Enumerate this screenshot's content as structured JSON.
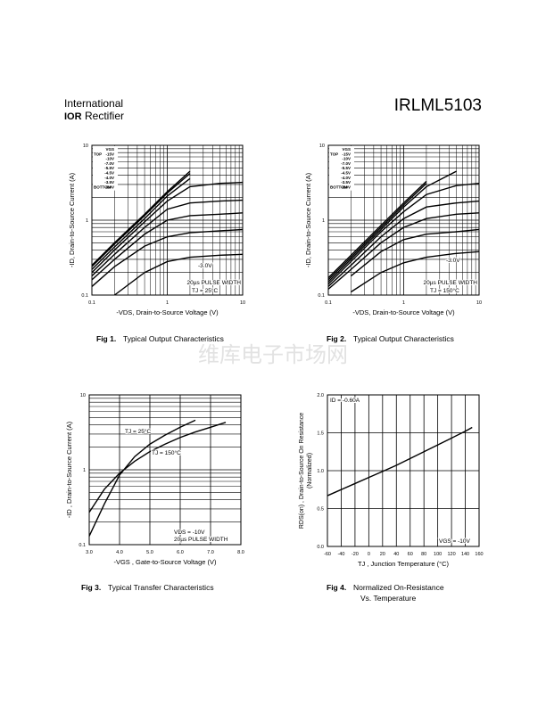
{
  "header": {
    "company_line1": "International",
    "company_logo": "IOR",
    "company_line2": "Rectifier",
    "part_number": "IRLML5103"
  },
  "watermark": "维库电子市场网",
  "chart_data": [
    {
      "type": "line",
      "x_log": true,
      "y_log": true,
      "grid": true,
      "xlim": [
        0.1,
        10
      ],
      "ylim": [
        0.1,
        10
      ],
      "xticks": [
        0.1,
        1,
        10
      ],
      "yticks": [
        0.1,
        1,
        10
      ],
      "x_label": "-VDS, Drain-to-Source Voltage (V)",
      "y_label": "-ID, Drain-to-Source Current (A)",
      "legend_title": "VGS",
      "legend_top": "TOP",
      "legend_bottom": "BOTTOM",
      "x": [
        0.1,
        0.2,
        0.5,
        1,
        2,
        5,
        10
      ],
      "series": [
        {
          "name": "-15V",
          "color": "#000000",
          "values": [
            0.25,
            0.5,
            1.2,
            2.4,
            4.5,
            null,
            null
          ]
        },
        {
          "name": "-10V",
          "color": "#000000",
          "values": [
            0.24,
            0.48,
            1.15,
            2.3,
            4.2,
            null,
            null
          ]
        },
        {
          "name": "-7.0V",
          "color": "#000000",
          "values": [
            0.22,
            0.44,
            1.05,
            2.1,
            3.6,
            null,
            null
          ]
        },
        {
          "name": "-5.5V",
          "color": "#000000",
          "values": [
            0.2,
            0.4,
            0.95,
            1.8,
            2.8,
            3.1,
            3.2
          ]
        },
        {
          "name": "-4.5V",
          "color": "#000000",
          "values": [
            0.18,
            0.35,
            0.8,
            1.4,
            1.7,
            1.8,
            1.85
          ]
        },
        {
          "name": "-4.0V",
          "color": "#000000",
          "values": [
            0.16,
            0.3,
            0.65,
            1.0,
            1.15,
            1.2,
            1.25
          ]
        },
        {
          "name": "-3.5V",
          "color": "#000000",
          "values": [
            0.13,
            0.24,
            0.45,
            0.6,
            0.68,
            0.72,
            0.75
          ]
        },
        {
          "name": "-3.0V",
          "color": "#000000",
          "values": [
            null,
            0.1,
            0.2,
            0.28,
            0.32,
            0.34,
            0.35
          ]
        }
      ],
      "annotations": [
        "-3.0V",
        "20µs PULSE WIDTH",
        "TJ = 25°C"
      ]
    },
    {
      "type": "line",
      "x_log": true,
      "y_log": true,
      "grid": true,
      "xlim": [
        0.1,
        10
      ],
      "ylim": [
        0.1,
        10
      ],
      "xticks": [
        0.1,
        1,
        10
      ],
      "yticks": [
        0.1,
        1,
        10
      ],
      "x_label": "-VDS, Drain-to-Source Voltage (V)",
      "y_label": "-ID, Drain-to-Source Current (A)",
      "legend_title": "VGS",
      "legend_top": "TOP",
      "legend_bottom": "BOTTOM",
      "x": [
        0.1,
        0.2,
        0.5,
        1,
        2,
        5,
        10
      ],
      "series": [
        {
          "name": "-15V",
          "color": "#000000",
          "values": [
            0.17,
            0.34,
            0.85,
            1.7,
            3.3,
            null,
            null
          ]
        },
        {
          "name": "-10V",
          "color": "#000000",
          "values": [
            0.16,
            0.32,
            0.8,
            1.6,
            3.1,
            null,
            null
          ]
        },
        {
          "name": "-7.0V",
          "color": "#000000",
          "values": [
            0.15,
            0.3,
            0.75,
            1.5,
            2.8,
            4.5,
            null
          ]
        },
        {
          "name": "-5.5V",
          "color": "#000000",
          "values": [
            0.14,
            0.28,
            0.7,
            1.3,
            2.2,
            2.9,
            3.1
          ]
        },
        {
          "name": "-4.5V",
          "color": "#000000",
          "values": [
            0.13,
            0.25,
            0.6,
            1.05,
            1.5,
            1.7,
            1.8
          ]
        },
        {
          "name": "-4.0V",
          "color": "#000000",
          "values": [
            0.12,
            0.22,
            0.5,
            0.8,
            1.05,
            1.2,
            1.25
          ]
        },
        {
          "name": "-3.5V",
          "color": "#000000",
          "values": [
            null,
            0.18,
            0.38,
            0.55,
            0.65,
            0.7,
            0.75
          ]
        },
        {
          "name": "-3.0V",
          "color": "#000000",
          "values": [
            null,
            0.11,
            0.2,
            0.27,
            0.32,
            0.36,
            0.38
          ]
        }
      ],
      "annotations": [
        "-3.0V",
        "20µs PULSE WIDTH",
        "TJ = 150°C"
      ]
    },
    {
      "type": "line",
      "x_log": false,
      "y_log": true,
      "grid": true,
      "xlim": [
        3,
        8
      ],
      "ylim": [
        0.1,
        10
      ],
      "xticks": [
        {
          "value": 3,
          "label": "3.0"
        },
        {
          "value": 4,
          "label": "4.0"
        },
        {
          "value": 5,
          "label": "5.0"
        },
        {
          "value": 6,
          "label": "6.0"
        },
        {
          "value": 7,
          "label": "7.0"
        },
        {
          "value": 8,
          "label": "8.0"
        }
      ],
      "yticks": [
        0.1,
        1,
        10
      ],
      "x_label": "-VGS , Gate-to-Source Voltage (V)",
      "y_label": "-ID , Drain-to-Source Current (A)",
      "x": [
        3.0,
        3.5,
        4.0,
        4.5,
        5.0,
        5.5,
        6.0,
        6.5,
        7.0,
        7.5
      ],
      "series": [
        {
          "name": "TJ = 25°C",
          "color": "#000000",
          "values": [
            0.13,
            0.35,
            0.85,
            1.5,
            2.2,
            2.9,
            3.7,
            4.6,
            null,
            null
          ]
        },
        {
          "name": "TJ = 150°C",
          "color": "#000000",
          "values": [
            0.27,
            0.55,
            0.9,
            1.3,
            1.75,
            2.2,
            2.7,
            3.2,
            3.7,
            4.3
          ]
        }
      ],
      "annotations": [
        "TJ = 25°C",
        "TJ = 150°C",
        "VDS = -10V",
        "20µs PULSE WIDTH"
      ]
    },
    {
      "type": "line",
      "x_log": false,
      "y_log": false,
      "grid": true,
      "xlim": [
        -60,
        160
      ],
      "ylim": [
        0,
        2
      ],
      "xticks": [
        -60,
        -40,
        -20,
        0,
        20,
        40,
        60,
        80,
        100,
        120,
        140,
        160
      ],
      "yticks": [
        {
          "value": 0,
          "label": "0.0"
        },
        {
          "value": 0.5,
          "label": "0.5"
        },
        {
          "value": 1,
          "label": "1.0"
        },
        {
          "value": 1.5,
          "label": "1.5"
        },
        {
          "value": 2,
          "label": "2.0"
        }
      ],
      "x_label": "TJ , Junction Temperature (°C)",
      "y_label": "RDS(on) , Drain-to-Source On Resistance",
      "y_label2": "(Normalized)",
      "x": [
        -60,
        -40,
        -20,
        0,
        20,
        40,
        60,
        80,
        100,
        120,
        140,
        150
      ],
      "series": [
        {
          "name": "RDS(on)",
          "color": "#000000",
          "values": [
            0.67,
            0.75,
            0.83,
            0.91,
            0.99,
            1.07,
            1.16,
            1.25,
            1.34,
            1.43,
            1.52,
            1.57
          ]
        }
      ],
      "annotations": [
        "ID = -0.60A",
        "VGS = -10V"
      ]
    }
  ],
  "captions": [
    {
      "label": "Fig 1.",
      "text": "Typical Output Characteristics"
    },
    {
      "label": "Fig 2.",
      "text": "Typical Output Characteristics"
    },
    {
      "label": "Fig 3.",
      "text": "Typical Transfer Characteristics"
    },
    {
      "label": "Fig 4.",
      "text": "Normalized On-Resistance",
      "text2": "Vs. Temperature"
    }
  ]
}
